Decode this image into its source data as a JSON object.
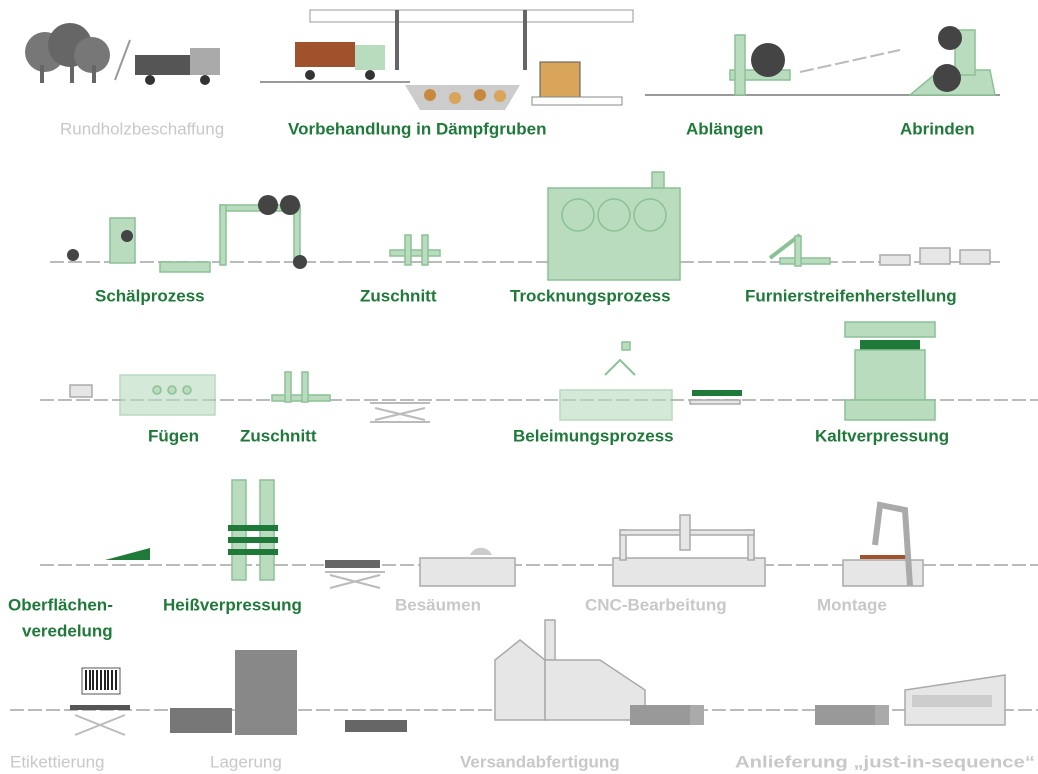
{
  "rows": [
    [
      "Rundholzbeschaffung",
      "Vorbehandlung in Dämpfgruben",
      "Ablängen",
      "Abrinden"
    ],
    [
      "Schälprozess",
      "Zuschnitt",
      "Trocknungsprozess",
      "Furnierstreifenherstellung"
    ],
    [
      "Fügen",
      "Zuschnitt",
      "Beleimungsprozess",
      "Kaltverpressung"
    ],
    [
      [
        "Oberflächen-",
        "veredelung"
      ],
      "Heißverpressung",
      "Besäumen",
      "CNC-Bearbeitung",
      "Montage"
    ],
    [
      "Etikettierung",
      "Lagerung",
      "Versandabfertigung",
      "Anlieferung „just-in-sequence“"
    ]
  ]
}
